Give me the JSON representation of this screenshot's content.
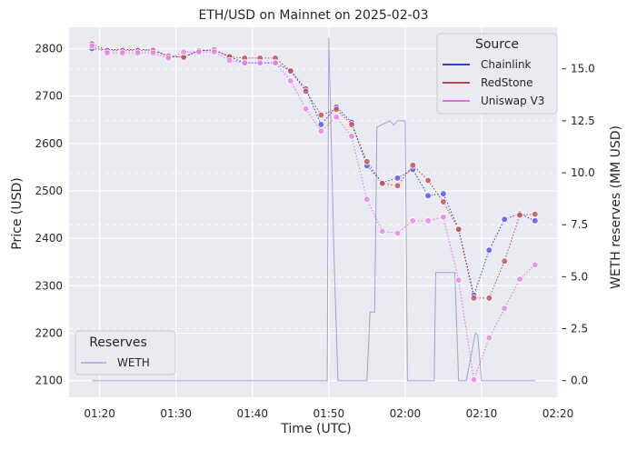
{
  "chart_data": {
    "type": "line",
    "title": "ETH/USD on Mainnet on 2025-02-03",
    "xlabel": "Time (UTC)",
    "ylabel": "Price (USD)",
    "y2label": "WETH reserves (MM USD)",
    "x_ticks": [
      "01:20",
      "01:30",
      "01:40",
      "01:50",
      "02:00",
      "02:10",
      "02:20"
    ],
    "xlim": [
      "01:16",
      "02:20"
    ],
    "ylim": [
      2065,
      2845
    ],
    "y_ticks": [
      2100,
      2200,
      2300,
      2400,
      2500,
      2600,
      2700,
      2800
    ],
    "y2lim": [
      -0.8,
      17.0
    ],
    "y2_ticks": [
      "0.0",
      "2.5",
      "5.0",
      "7.5",
      "10.0",
      "12.5",
      "15.0"
    ],
    "grid": true,
    "background": "#eaeaf2",
    "legends": [
      {
        "title": "Source",
        "placement": "top-right",
        "entries": [
          "Chainlink",
          "RedStone",
          "Uniswap V3"
        ]
      },
      {
        "title": "Reserves",
        "placement": "bottom-left",
        "entries": [
          "WETH"
        ]
      }
    ],
    "series": [
      {
        "name": "Chainlink",
        "color": "#0000cc",
        "marker_color": "#5b5bf5",
        "axis": "left",
        "points": [
          [
            "01:19",
            2800
          ],
          [
            "01:21",
            2798
          ],
          [
            "01:23",
            2798
          ],
          [
            "01:25",
            2798
          ],
          [
            "01:27",
            2798
          ],
          [
            "01:29",
            2784
          ],
          [
            "01:31",
            2782
          ],
          [
            "01:33",
            2796
          ],
          [
            "01:35",
            2797
          ],
          [
            "01:37",
            2783
          ],
          [
            "01:39",
            2770
          ],
          [
            "01:41",
            2770
          ],
          [
            "01:43",
            2770
          ],
          [
            "01:45",
            2753
          ],
          [
            "01:47",
            2715
          ],
          [
            "01:49",
            2640
          ],
          [
            "01:51",
            2677
          ],
          [
            "01:53",
            2645
          ],
          [
            "01:55",
            2553
          ],
          [
            "01:57",
            2518
          ],
          [
            "01:59",
            2527
          ],
          [
            "02:01",
            2545
          ],
          [
            "02:03",
            2490
          ],
          [
            "02:05",
            2494
          ],
          [
            "02:07",
            2420
          ],
          [
            "02:09",
            2280
          ],
          [
            "02:11",
            2375
          ],
          [
            "02:13",
            2440
          ],
          [
            "02:15",
            2452
          ],
          [
            "02:17",
            2437
          ]
        ]
      },
      {
        "name": "RedStone",
        "color": "#aa1111",
        "marker_color": "#c15a5a",
        "axis": "left",
        "points": [
          [
            "01:19",
            2810
          ],
          [
            "01:21",
            2796
          ],
          [
            "01:23",
            2796
          ],
          [
            "01:25",
            2796
          ],
          [
            "01:27",
            2796
          ],
          [
            "01:29",
            2784
          ],
          [
            "01:31",
            2782
          ],
          [
            "01:33",
            2796
          ],
          [
            "01:35",
            2797
          ],
          [
            "01:37",
            2783
          ],
          [
            "01:39",
            2780
          ],
          [
            "01:41",
            2780
          ],
          [
            "01:43",
            2780
          ],
          [
            "01:45",
            2753
          ],
          [
            "01:47",
            2710
          ],
          [
            "01:49",
            2660
          ],
          [
            "01:51",
            2672
          ],
          [
            "01:53",
            2640
          ],
          [
            "01:55",
            2562
          ],
          [
            "01:57",
            2516
          ],
          [
            "01:59",
            2511
          ],
          [
            "02:01",
            2554
          ],
          [
            "02:03",
            2522
          ],
          [
            "02:05",
            2477
          ],
          [
            "02:07",
            2419
          ],
          [
            "02:09",
            2274
          ],
          [
            "02:11",
            2274
          ],
          [
            "02:13",
            2352
          ],
          [
            "02:15",
            2449
          ],
          [
            "02:17",
            2451
          ]
        ]
      },
      {
        "name": "Uniswap V3",
        "color": "#dd44dd",
        "marker_color": "#e98ae9",
        "axis": "left",
        "points": [
          [
            "01:19",
            2806
          ],
          [
            "01:21",
            2791
          ],
          [
            "01:23",
            2791
          ],
          [
            "01:25",
            2791
          ],
          [
            "01:27",
            2791
          ],
          [
            "01:29",
            2780
          ],
          [
            "01:31",
            2793
          ],
          [
            "01:33",
            2793
          ],
          [
            "01:35",
            2793
          ],
          [
            "01:37",
            2775
          ],
          [
            "01:39",
            2770
          ],
          [
            "01:41",
            2770
          ],
          [
            "01:43",
            2770
          ],
          [
            "01:45",
            2732
          ],
          [
            "01:47",
            2673
          ],
          [
            "01:49",
            2626
          ],
          [
            "01:51",
            2656
          ],
          [
            "01:53",
            2615
          ],
          [
            "01:55",
            2482
          ],
          [
            "01:57",
            2415
          ],
          [
            "01:59",
            2411
          ],
          [
            "02:01",
            2437
          ],
          [
            "02:03",
            2437
          ],
          [
            "02:05",
            2445
          ],
          [
            "02:07",
            2312
          ],
          [
            "02:09",
            2102
          ],
          [
            "02:11",
            2190
          ],
          [
            "02:13",
            2252
          ],
          [
            "02:15",
            2314
          ],
          [
            "02:17",
            2344
          ]
        ]
      },
      {
        "name": "WETH",
        "color": "#9a94c8",
        "axis": "right",
        "points": [
          [
            "01:19",
            0.0
          ],
          [
            "01:49.8",
            0.0
          ],
          [
            "01:50",
            16.5
          ],
          [
            "01:50.7",
            5.8
          ],
          [
            "01:51.2",
            0.0
          ],
          [
            "01:55",
            0.0
          ],
          [
            "01:55.4",
            3.3
          ],
          [
            "01:56",
            3.3
          ],
          [
            "01:56.3",
            12.2
          ],
          [
            "01:58",
            12.5
          ],
          [
            "01:58.5",
            12.3
          ],
          [
            "01:59",
            12.5
          ],
          [
            "02:00",
            12.5
          ],
          [
            "02:00.3",
            0.0
          ],
          [
            "02:03",
            0.0
          ],
          [
            "02:03.8",
            0.0
          ],
          [
            "02:04",
            5.2
          ],
          [
            "02:06.5",
            5.2
          ],
          [
            "02:07",
            0.0
          ],
          [
            "02:08",
            0.0
          ],
          [
            "02:09.2",
            2.3
          ],
          [
            "02:09.5",
            2.2
          ],
          [
            "02:10",
            0.0
          ],
          [
            "02:17",
            0.0
          ]
        ]
      }
    ]
  }
}
